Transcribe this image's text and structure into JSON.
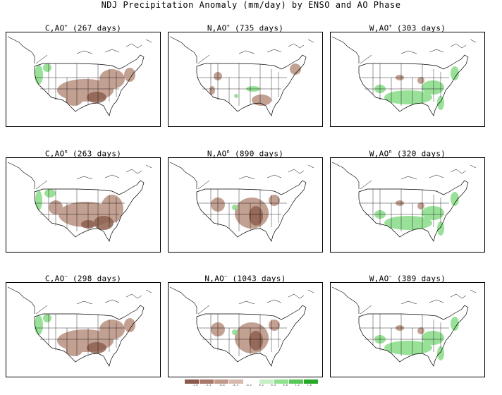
{
  "title": "NDJ Precipitation Anomaly (mm/day) by ENSO and AO Phase",
  "panels": [
    {
      "label": "C,AO",
      "sup": "+",
      "days": "(267 days)",
      "pattern": "dry-south-wet-west"
    },
    {
      "label": "N,AO",
      "sup": "+",
      "days": "(735 days)",
      "pattern": "weak-dry"
    },
    {
      "label": "W,AO",
      "sup": "+",
      "days": "(303 days)",
      "pattern": "wet-south"
    },
    {
      "label": "C,AO",
      "sup": "n",
      "days": "(263 days)",
      "pattern": "strong-dry-southeast"
    },
    {
      "label": "N,AO",
      "sup": "n",
      "days": "(890 days)",
      "pattern": "dry-central"
    },
    {
      "label": "W,AO",
      "sup": "n",
      "days": "(320 days)",
      "pattern": "wet-south"
    },
    {
      "label": "C,AO",
      "sup": "−",
      "days": "(298 days)",
      "pattern": "dry-south-wet-west"
    },
    {
      "label": "N,AO",
      "sup": "−",
      "days": "(1043 days)",
      "pattern": "dry-central"
    },
    {
      "label": "W,AO",
      "sup": "−",
      "days": "(389 days)",
      "pattern": "wet-south"
    }
  ],
  "colorbar": {
    "labels": [
      "-1.6",
      "-1.2",
      "-0.8",
      "-0.4",
      "-0.2",
      "0.2",
      "0.4",
      "0.8",
      "1.2",
      "1.6"
    ],
    "dry_colors": [
      "#8a5a4a",
      "#a8786a",
      "#c29a8c",
      "#d8bab0"
    ],
    "wet_colors": [
      "#c8f0c8",
      "#90e090",
      "#58c858",
      "#28a828"
    ]
  },
  "colors": {
    "dry": "#b89080",
    "dry_strong": "#8e6050",
    "wet": "#8ede8e",
    "wet_strong": "#40c040"
  }
}
